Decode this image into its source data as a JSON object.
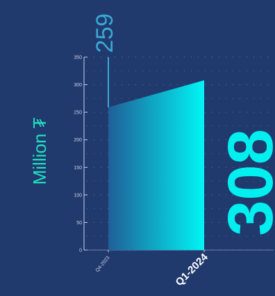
{
  "chart_data": {
    "type": "area",
    "categories": [
      "Q4-2023",
      "Q1-2024"
    ],
    "values": [
      259,
      308
    ],
    "value_labels": [
      "259",
      "308"
    ],
    "unit_label": "Million ₮",
    "ylim": [
      0,
      350
    ],
    "yticks": [
      0,
      50,
      100,
      150,
      200,
      250,
      300,
      350
    ],
    "grid": "dotted",
    "colors": {
      "background": "#213a6e",
      "fill_start": "#1f5f98",
      "fill_end": "#00f5f5",
      "start_label": "#3aa9d6",
      "end_label": "#00f0f0",
      "unit_label": "#1fe0c0",
      "axis": "#c8d2e6"
    }
  }
}
